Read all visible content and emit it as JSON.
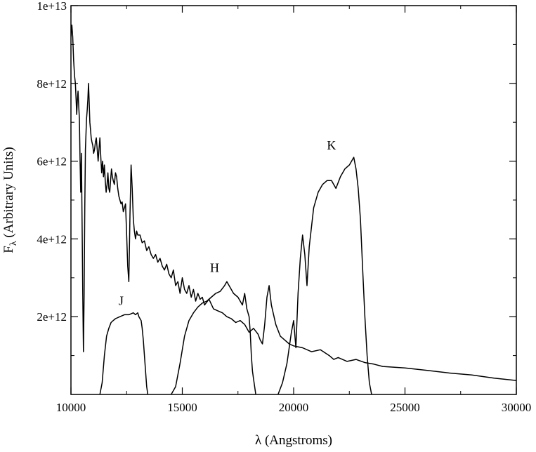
{
  "chart_data": {
    "type": "line",
    "title": "",
    "xlabel": "λ (Angstroms)",
    "ylabel_main": "F",
    "ylabel_sub": "λ",
    "ylabel_rest": " (Arbitrary Units)",
    "xlim": [
      10000,
      30000
    ],
    "ylim": [
      0,
      10000000000000.0
    ],
    "x_ticks": [
      10000,
      15000,
      20000,
      25000,
      30000
    ],
    "x_tick_labels": [
      "10000",
      "15000",
      "20000",
      "25000",
      "30000"
    ],
    "y_ticks": [
      2000000000000.0,
      4000000000000.0,
      6000000000000.0,
      8000000000000.0,
      10000000000000.0
    ],
    "y_tick_labels": [
      "2e+12",
      "4e+12",
      "6e+12",
      "8e+12",
      "1e+13"
    ],
    "grid": false,
    "line_color": "#000000",
    "annotations": [
      {
        "text": "J",
        "x": 12250,
        "y": 2300000000000.0
      },
      {
        "text": "H",
        "x": 16450,
        "y": 3150000000000.0
      },
      {
        "text": "K",
        "x": 21700,
        "y": 6300000000000.0
      }
    ],
    "series": [
      {
        "x": [
          10000,
          10040,
          10080,
          10120,
          10160,
          10200,
          10230,
          10260,
          10290,
          10320,
          10350,
          10380,
          10410,
          10440,
          10470,
          10500,
          10530,
          10560,
          10590,
          10620,
          10650,
          10680,
          10700,
          10730,
          10760,
          10790,
          10820,
          10850,
          10880,
          10910,
          10940,
          10980,
          11020,
          11060,
          11100,
          11140,
          11180,
          11220,
          11260,
          11300,
          11340,
          11380,
          11420,
          11460,
          11500,
          11540,
          11580,
          11620,
          11660,
          11700,
          11740,
          11780,
          11820,
          11860,
          11900,
          11950,
          12000,
          12050,
          12100,
          12150,
          12200,
          12250,
          12300,
          12350,
          12400,
          12450,
          12500,
          12550,
          12600,
          12650,
          12700,
          12750,
          12800,
          12850,
          12900,
          12950,
          13000,
          13100,
          13200,
          13300,
          13400,
          13500,
          13600,
          13700,
          13800,
          13900,
          14000,
          14100,
          14200,
          14300,
          14400,
          14500,
          14600,
          14700,
          14800,
          14900,
          15000,
          15100,
          15200,
          15300,
          15400,
          15500,
          15600,
          15700,
          15800,
          15900,
          16000,
          16200,
          16400,
          16600,
          16800,
          17000,
          17200,
          17400,
          17600,
          17800,
          18000,
          18200,
          18400,
          18500,
          18600,
          18700,
          18800,
          18900,
          19000,
          19200,
          19400,
          19600,
          19800,
          20000,
          20400,
          20800,
          21200,
          21600,
          21800,
          22000,
          22400,
          22800,
          23200,
          23600,
          24000,
          25000,
          26000,
          27000,
          28000,
          29000,
          30000
        ],
        "values": [
          9200000000000.0,
          9500000000000.0,
          9200000000000.0,
          8600000000000.0,
          8200000000000.0,
          8000000000000.0,
          7600000000000.0,
          7200000000000.0,
          7600000000000.0,
          7800000000000.0,
          7400000000000.0,
          7100000000000.0,
          6000000000000.0,
          5200000000000.0,
          6200000000000.0,
          4500000000000.0,
          2600000000000.0,
          1100000000000.0,
          2500000000000.0,
          4800000000000.0,
          6300000000000.0,
          6800000000000.0,
          7100000000000.0,
          7300000000000.0,
          7600000000000.0,
          8000000000000.0,
          7500000000000.0,
          7000000000000.0,
          6800000000000.0,
          6600000000000.0,
          6500000000000.0,
          6400000000000.0,
          6200000000000.0,
          6300000000000.0,
          6500000000000.0,
          6600000000000.0,
          6300000000000.0,
          6000000000000.0,
          6300000000000.0,
          6600000000000.0,
          6100000000000.0,
          5700000000000.0,
          6000000000000.0,
          5600000000000.0,
          5900000000000.0,
          5500000000000.0,
          5200000000000.0,
          5400000000000.0,
          5700000000000.0,
          5300000000000.0,
          5200000000000.0,
          5500000000000.0,
          5800000000000.0,
          5600000000000.0,
          5500000000000.0,
          5400000000000.0,
          5700000000000.0,
          5600000000000.0,
          5300000000000.0,
          5100000000000.0,
          5000000000000.0,
          4900000000000.0,
          4950000000000.0,
          4700000000000.0,
          4800000000000.0,
          4900000000000.0,
          4100000000000.0,
          3300000000000.0,
          2900000000000.0,
          4600000000000.0,
          5900000000000.0,
          5300000000000.0,
          4500000000000.0,
          4200000000000.0,
          4000000000000.0,
          4200000000000.0,
          4100000000000.0,
          4100000000000.0,
          3900000000000.0,
          3950000000000.0,
          3700000000000.0,
          3800000000000.0,
          3600000000000.0,
          3500000000000.0,
          3600000000000.0,
          3400000000000.0,
          3500000000000.0,
          3300000000000.0,
          3200000000000.0,
          3350000000000.0,
          3100000000000.0,
          3000000000000.0,
          3200000000000.0,
          2800000000000.0,
          2900000000000.0,
          2600000000000.0,
          3000000000000.0,
          2700000000000.0,
          2600000000000.0,
          2800000000000.0,
          2500000000000.0,
          2700000000000.0,
          2400000000000.0,
          2600000000000.0,
          2450000000000.0,
          2500000000000.0,
          2300000000000.0,
          2450000000000.0,
          2200000000000.0,
          2150000000000.0,
          2100000000000.0,
          2000000000000.0,
          1950000000000.0,
          1850000000000.0,
          1900000000000.0,
          1800000000000.0,
          1600000000000.0,
          1700000000000.0,
          1550000000000.0,
          1400000000000.0,
          1300000000000.0,
          1800000000000.0,
          2500000000000.0,
          2800000000000.0,
          2300000000000.0,
          1800000000000.0,
          1500000000000.0,
          1400000000000.0,
          1300000000000.0,
          1250000000000.0,
          1200000000000.0,
          1100000000000.0,
          1150000000000.0,
          1000000000000.0,
          900000000000.0,
          950000000000.0,
          850000000000.0,
          900000000000.0,
          820000000000.0,
          780000000000.0,
          720000000000.0,
          680000000000.0,
          620000000000.0,
          550000000000.0,
          500000000000.0,
          420000000000.0,
          360000000000.0
        ]
      },
      {
        "x": [
          11300,
          11400,
          11500,
          11600,
          11700,
          11800,
          11900,
          12000,
          12200,
          12400,
          12600,
          12800,
          12900,
          13000,
          13050,
          13100,
          13150,
          13200,
          13250,
          13300,
          13350,
          13400,
          13450
        ],
        "values": [
          0,
          300000000000.0,
          1000000000000.0,
          1500000000000.0,
          1700000000000.0,
          1850000000000.0,
          1900000000000.0,
          1950000000000.0,
          2000000000000.0,
          2050000000000.0,
          2050000000000.0,
          2100000000000.0,
          2050000000000.0,
          2100000000000.0,
          2000000000000.0,
          1950000000000.0,
          1900000000000.0,
          1700000000000.0,
          1400000000000.0,
          1000000000000.0,
          600000000000.0,
          200000000000.0,
          0
        ]
      },
      {
        "x": [
          14500,
          14700,
          14900,
          15100,
          15300,
          15500,
          15700,
          15900,
          16100,
          16300,
          16500,
          16700,
          16900,
          17000,
          17100,
          17300,
          17500,
          17700,
          17800,
          17900,
          18000,
          18050,
          18100,
          18150,
          18200,
          18250,
          18300
        ],
        "values": [
          0,
          200000000000.0,
          800000000000.0,
          1500000000000.0,
          1900000000000.0,
          2100000000000.0,
          2250000000000.0,
          2350000000000.0,
          2400000000000.0,
          2500000000000.0,
          2600000000000.0,
          2650000000000.0,
          2800000000000.0,
          2900000000000.0,
          2800000000000.0,
          2600000000000.0,
          2500000000000.0,
          2300000000000.0,
          2600000000000.0,
          2200000000000.0,
          2000000000000.0,
          1600000000000.0,
          1000000000000.0,
          600000000000.0,
          400000000000.0,
          200000000000.0,
          0
        ]
      },
      {
        "x": [
          19300,
          19500,
          19700,
          19900,
          20000,
          20100,
          20200,
          20300,
          20400,
          20500,
          20600,
          20700,
          20900,
          21100,
          21300,
          21500,
          21700,
          21900,
          22100,
          22300,
          22500,
          22700,
          22800,
          22900,
          23000,
          23100,
          23200,
          23300,
          23400,
          23500
        ],
        "values": [
          0,
          300000000000.0,
          800000000000.0,
          1600000000000.0,
          1900000000000.0,
          1200000000000.0,
          2600000000000.0,
          3500000000000.0,
          4100000000000.0,
          3600000000000.0,
          2800000000000.0,
          3800000000000.0,
          4800000000000.0,
          5200000000000.0,
          5400000000000.0,
          5500000000000.0,
          5500000000000.0,
          5300000000000.0,
          5600000000000.0,
          5800000000000.0,
          5900000000000.0,
          6100000000000.0,
          5800000000000.0,
          5300000000000.0,
          4500000000000.0,
          3200000000000.0,
          2000000000000.0,
          1000000000000.0,
          300000000000.0,
          0
        ]
      }
    ]
  }
}
